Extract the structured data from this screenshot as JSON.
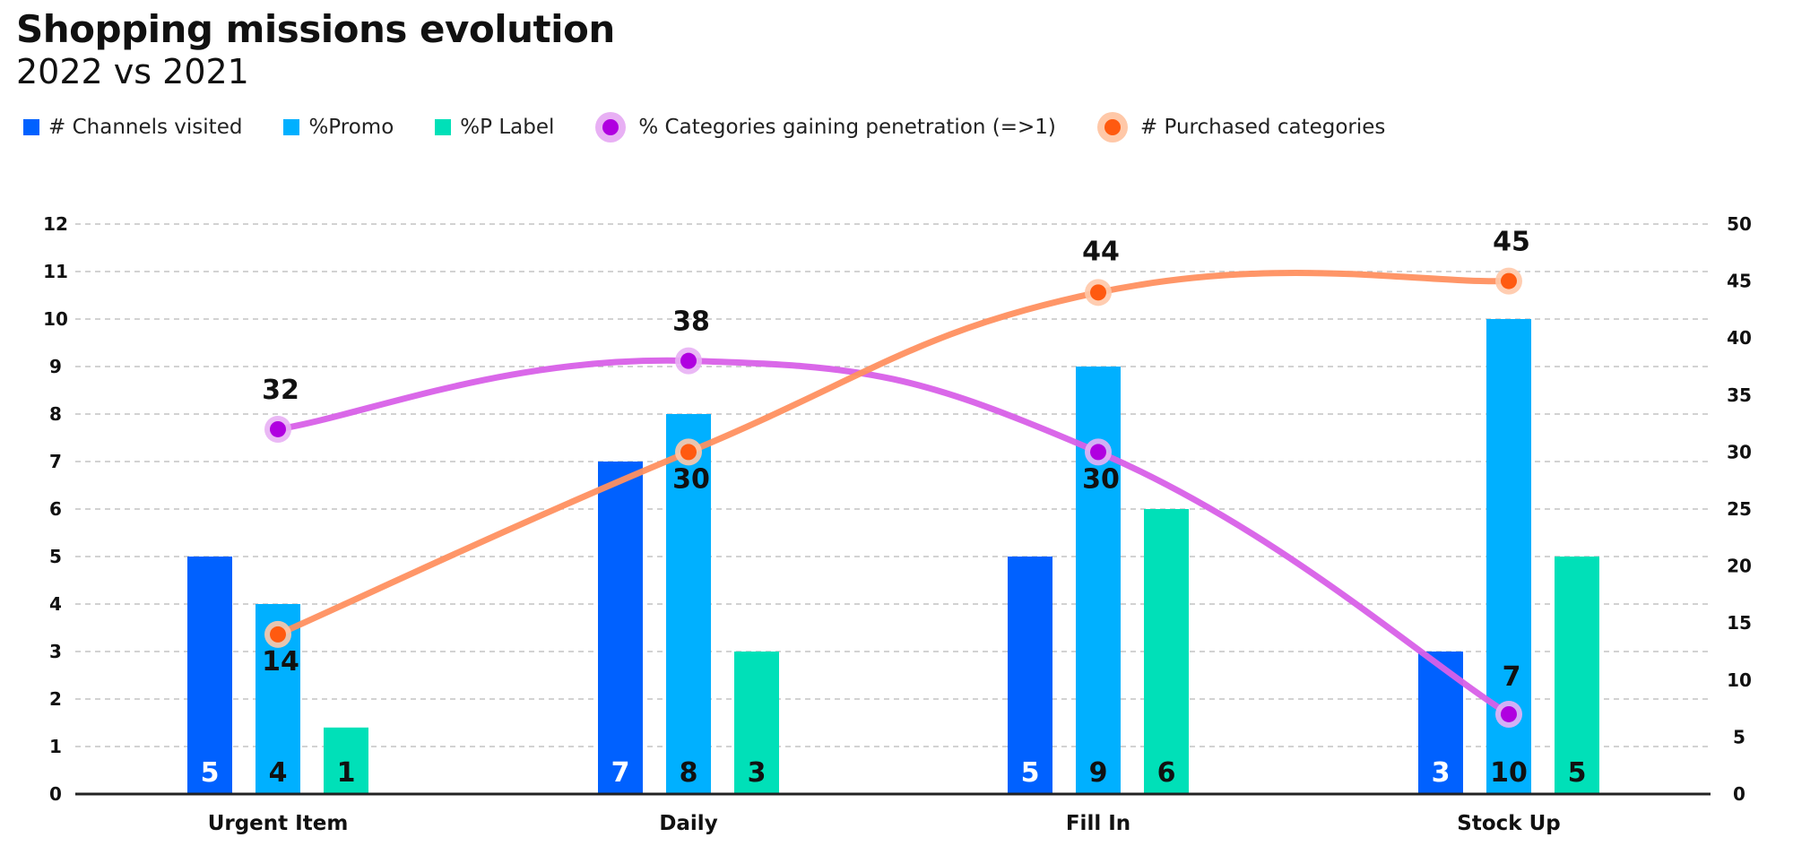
{
  "chart_data": {
    "type": "bar",
    "title": "Shopping missions evolution",
    "subtitle": "2022 vs 2021",
    "categories": [
      "Urgent Item",
      "Daily",
      "Fill In",
      "Stock Up"
    ],
    "series": [
      {
        "name": "# Channels visited",
        "kind": "bar",
        "axis": "left",
        "color": "#0061FF",
        "values": [
          5,
          7,
          5,
          3
        ],
        "labels": [
          "5",
          "7",
          "5",
          "3"
        ]
      },
      {
        "name": "%Promo",
        "kind": "bar",
        "axis": "left",
        "color": "#00B0FF",
        "values": [
          4,
          8,
          9,
          10
        ],
        "labels": [
          "4",
          "8",
          "9",
          "10"
        ]
      },
      {
        "name": "%P Label",
        "kind": "bar",
        "axis": "left",
        "color": "#00E0B8",
        "values": [
          1.4,
          3,
          6,
          5
        ],
        "labels": [
          "1",
          "3",
          "6",
          "5"
        ]
      },
      {
        "name": "% Categories gaining penetration (=>1)",
        "kind": "line",
        "axis": "right",
        "color": "#B000E0",
        "lineColor": "#D860E8",
        "haloColor": "#E8B0F4",
        "values": [
          32,
          38,
          30,
          7
        ],
        "labels": [
          "32",
          "38",
          "30",
          "7"
        ]
      },
      {
        "name": "# Purchased categories",
        "kind": "line",
        "axis": "right",
        "color": "#FF5A10",
        "lineColor": "#FF9060",
        "haloColor": "#FFC8A8",
        "values": [
          14,
          30,
          44,
          45
        ],
        "labels": [
          "14",
          "30",
          "44",
          "45"
        ]
      }
    ],
    "y_left": {
      "min": 0,
      "max": 12,
      "ticks": [
        0,
        1,
        2,
        3,
        4,
        5,
        6,
        7,
        8,
        9,
        10,
        11,
        12
      ]
    },
    "y_right": {
      "min": 0,
      "max": 50,
      "ticks": [
        0,
        5,
        10,
        15,
        20,
        25,
        30,
        35,
        40,
        45,
        50
      ]
    },
    "grid": true,
    "legend_position": "top-left"
  }
}
